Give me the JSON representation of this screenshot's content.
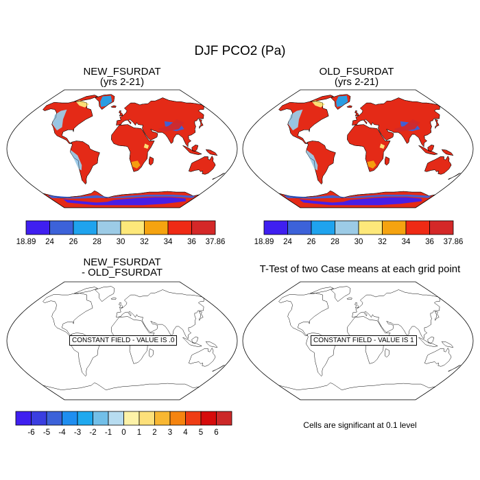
{
  "title": "DJF PCO2 (Pa)",
  "panels": [
    {
      "title_line1": "NEW_FSURDAT",
      "title_line2": "(yrs 2-21)"
    },
    {
      "title_line1": "OLD_FSURDAT",
      "title_line2": "(yrs 2-21)"
    },
    {
      "title_line1": "NEW_FSURDAT",
      "title_line2": "- OLD_FSURDAT",
      "annotation": "CONSTANT FIELD - VALUE IS .0"
    },
    {
      "title_line1": "T-Test of two Case means at each grid point",
      "annotation": "CONSTANT FIELD - VALUE IS 1"
    }
  ],
  "colorbar_top": {
    "labels": [
      "18.89",
      "24",
      "26",
      "28",
      "30",
      "32",
      "34",
      "36",
      "37.86"
    ],
    "colors": [
      "#3f1ff0",
      "#3c62d9",
      "#1fa3ee",
      "#9ccbe6",
      "#fde87a",
      "#f5a310",
      "#ef2a14",
      "#d42828"
    ]
  },
  "colorbar_bottom": {
    "labels": [
      "-6",
      "-5",
      "-4",
      "-3",
      "-2",
      "-1",
      "0",
      "1",
      "2",
      "3",
      "4",
      "5",
      "6"
    ],
    "colors": [
      "#3f1ff0",
      "#3a3ee0",
      "#3c62d9",
      "#1f8ef0",
      "#1fa9ef",
      "#72bfe8",
      "#b7dcf0",
      "#fdf2a8",
      "#fde07a",
      "#f8b732",
      "#f5840f",
      "#ef3d14",
      "#d60b0b",
      "#cc2828"
    ]
  },
  "significance_note": "Cells are significant at 0.1 level",
  "chart_data": [
    {
      "type": "heatmap",
      "title": "NEW_FSURDAT (yrs 2-21)",
      "variable": "DJF PCO2 (Pa)",
      "range": [
        18.89,
        37.86
      ],
      "contour_levels": [
        24,
        26,
        28,
        30,
        32,
        34,
        36
      ]
    },
    {
      "type": "heatmap",
      "title": "OLD_FSURDAT (yrs 2-21)",
      "variable": "DJF PCO2 (Pa)",
      "range": [
        18.89,
        37.86
      ],
      "contour_levels": [
        24,
        26,
        28,
        30,
        32,
        34,
        36
      ]
    },
    {
      "type": "heatmap",
      "title": "NEW_FSURDAT - OLD_FSURDAT",
      "constant_value": 0,
      "contour_levels": [
        -6,
        -5,
        -4,
        -3,
        -2,
        -1,
        0,
        1,
        2,
        3,
        4,
        5,
        6
      ]
    },
    {
      "type": "heatmap",
      "title": "T-Test of two Case means at each grid point",
      "constant_value": 1,
      "significance_level": 0.1
    }
  ]
}
